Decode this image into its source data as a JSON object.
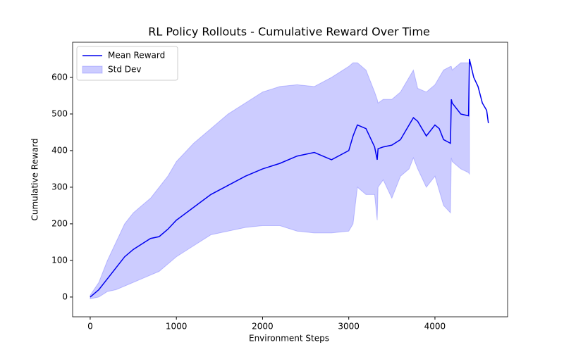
{
  "chart_data": {
    "type": "line",
    "title": "RL Policy Rollouts - Cumulative Reward Over Time",
    "x_label": "Environment Steps",
    "y_label": "Cumulative Reward",
    "x": [
      0,
      100,
      200,
      300,
      400,
      500,
      600,
      700,
      800,
      900,
      1000,
      1200,
      1400,
      1600,
      1800,
      2000,
      2200,
      2400,
      2600,
      2800,
      3000,
      3050,
      3100,
      3200,
      3300,
      3330,
      3340,
      3400,
      3500,
      3600,
      3700,
      3750,
      3800,
      3900,
      4000,
      4050,
      4100,
      4180,
      4190,
      4200,
      4300,
      4390,
      4400,
      4450,
      4500,
      4550,
      4600,
      4620
    ],
    "series": [
      {
        "name": "Mean Reward",
        "color": "#0000ee",
        "values": [
          0,
          20,
          50,
          80,
          110,
          130,
          145,
          160,
          165,
          185,
          210,
          245,
          280,
          305,
          330,
          350,
          365,
          385,
          395,
          375,
          400,
          440,
          470,
          460,
          410,
          375,
          405,
          410,
          415,
          430,
          470,
          490,
          480,
          440,
          470,
          460,
          430,
          420,
          540,
          530,
          500,
          495,
          650,
          600,
          575,
          530,
          510,
          475
        ]
      },
      {
        "name": "Std Dev",
        "color": "#0000ff",
        "upper": [
          5,
          40,
          100,
          150,
          200,
          230,
          250,
          270,
          300,
          330,
          370,
          420,
          460,
          500,
          530,
          560,
          575,
          580,
          575,
          600,
          630,
          640,
          640,
          620,
          560,
          540,
          530,
          540,
          540,
          560,
          600,
          620,
          570,
          560,
          580,
          600,
          620,
          630,
          630,
          620,
          640,
          640,
          640,
          null,
          null,
          null,
          null,
          null
        ],
        "lower": [
          -5,
          0,
          15,
          20,
          30,
          40,
          50,
          60,
          70,
          90,
          110,
          140,
          170,
          180,
          190,
          195,
          195,
          180,
          175,
          175,
          180,
          200,
          300,
          280,
          280,
          210,
          300,
          320,
          270,
          330,
          350,
          380,
          350,
          300,
          330,
          290,
          250,
          230,
          380,
          370,
          350,
          340,
          335,
          null,
          null,
          null,
          null,
          null
        ]
      }
    ],
    "xlim": [
      -204,
      4843
    ],
    "ylim": [
      -54,
      696
    ],
    "xticks": [
      0,
      1000,
      2000,
      3000,
      4000
    ],
    "yticks": [
      0,
      100,
      200,
      300,
      400,
      500,
      600
    ],
    "legend": "upper left"
  }
}
